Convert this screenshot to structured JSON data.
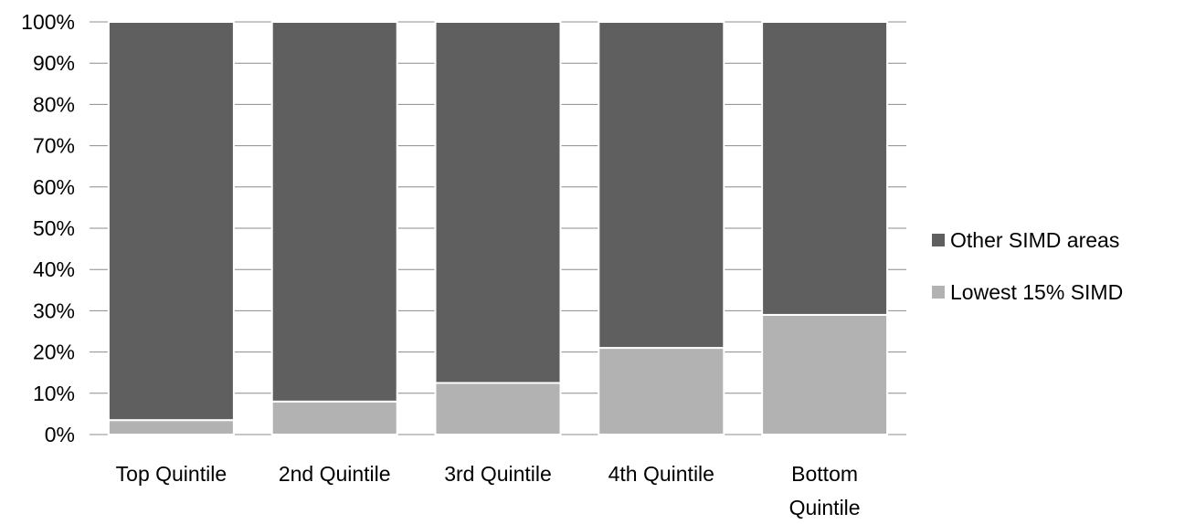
{
  "chart_data": {
    "type": "bar",
    "stacked": true,
    "percent": true,
    "categories": [
      [
        "Top Quintile"
      ],
      [
        "2nd Quintile"
      ],
      [
        "3rd Quintile"
      ],
      [
        "4th Quintile"
      ],
      [
        "Bottom",
        "Quintile"
      ]
    ],
    "series": [
      {
        "name": "Lowest 15% SIMD",
        "values": [
          3.5,
          8,
          12.5,
          21,
          29
        ],
        "color": "#b2b2b2"
      },
      {
        "name": "Other SIMD areas",
        "values": [
          96.5,
          92,
          87.5,
          79,
          71
        ],
        "color": "#5f5f5f"
      }
    ],
    "ylim": [
      0,
      100
    ],
    "yticks": [
      "0%",
      "10%",
      "20%",
      "30%",
      "40%",
      "50%",
      "60%",
      "70%",
      "80%",
      "90%",
      "100%"
    ],
    "grid": true,
    "legend": {
      "position": "right",
      "items": [
        "Other SIMD areas",
        "Lowest 15% SIMD"
      ]
    },
    "title": "",
    "xlabel": "",
    "ylabel": ""
  }
}
